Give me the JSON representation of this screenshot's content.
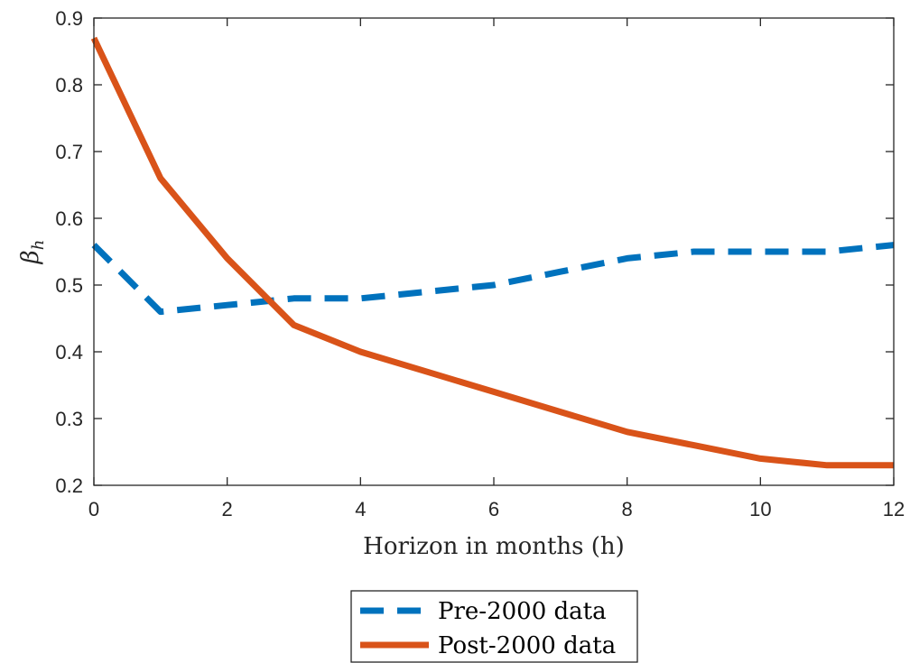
{
  "chart_data": {
    "type": "line",
    "xlabel": "Horizon in months (h)",
    "ylabel": "β_h",
    "ylabel_main": "β",
    "ylabel_sub": "h",
    "xlim": [
      0,
      12
    ],
    "ylim": [
      0.2,
      0.9
    ],
    "xticks": [
      0,
      2,
      4,
      6,
      8,
      10,
      12
    ],
    "xtick_labels": [
      "0",
      "2",
      "4",
      "6",
      "8",
      "10",
      "12"
    ],
    "yticks": [
      0.2,
      0.3,
      0.4,
      0.5,
      0.6,
      0.7,
      0.8,
      0.9
    ],
    "ytick_labels": [
      "0.2",
      "0.3",
      "0.4",
      "0.5",
      "0.6",
      "0.7",
      "0.8",
      "0.9"
    ],
    "grid": false,
    "legend_position": "bottom-center, below axes",
    "series": [
      {
        "name": "Pre-2000 data",
        "color": "#0072bd",
        "dash": "dashed",
        "x": [
          0,
          1,
          2,
          3,
          4,
          5,
          6,
          7,
          8,
          9,
          10,
          11,
          12
        ],
        "y": [
          0.56,
          0.46,
          0.47,
          0.48,
          0.48,
          0.49,
          0.5,
          0.52,
          0.54,
          0.55,
          0.55,
          0.55,
          0.56
        ]
      },
      {
        "name": "Post-2000 data",
        "color": "#d95319",
        "dash": "solid",
        "x": [
          0,
          1,
          2,
          3,
          4,
          5,
          6,
          7,
          8,
          9,
          10,
          11,
          12
        ],
        "y": [
          0.87,
          0.66,
          0.54,
          0.44,
          0.4,
          0.37,
          0.34,
          0.31,
          0.28,
          0.26,
          0.24,
          0.23,
          0.23
        ]
      }
    ]
  }
}
